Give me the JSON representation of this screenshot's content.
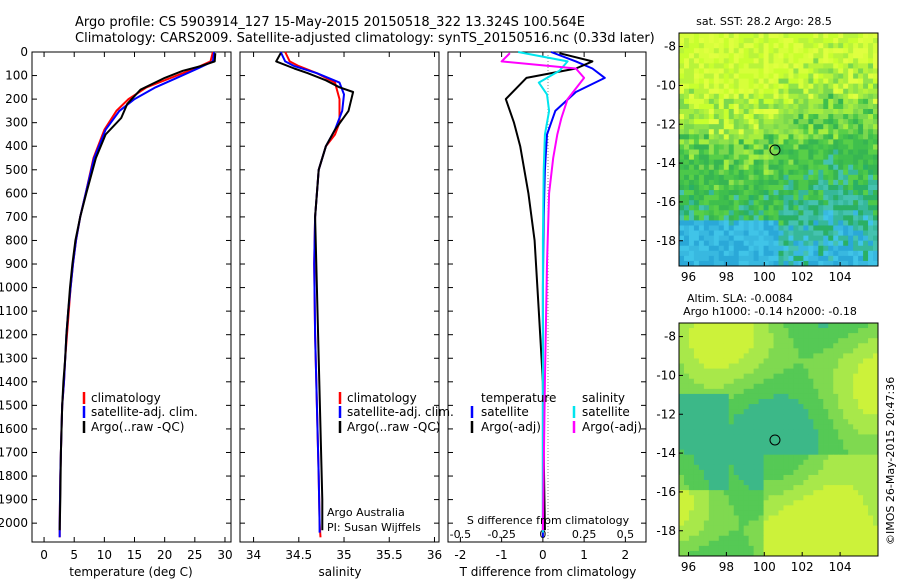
{
  "header": {
    "line1": "Argo profile: CS 5903914_127 15-May-2015 20150518_322 13.324S 100.564E",
    "line2": "Climatology: CARS2009. Satellite-adjusted climatology: synTS_20150516.nc (0.33d later)"
  },
  "colors": {
    "climatology": "#ff0000",
    "satellite": "#0000ff",
    "argo": "#000000",
    "sat_diff": "#00e5ee",
    "argo_diff": "#ff00ff"
  },
  "chart_data": [
    {
      "type": "line",
      "id": "temperature",
      "xlabel": "temperature (deg C)",
      "xlim": [
        -2,
        31
      ],
      "ylim": [
        2080,
        0
      ],
      "xticks": [
        "0",
        "5",
        "10",
        "15",
        "20",
        "25",
        "30"
      ],
      "xtick_values": [
        0,
        5,
        10,
        15,
        20,
        25,
        30
      ],
      "yticks": [
        "0",
        "100",
        "200",
        "300",
        "400",
        "500",
        "600",
        "700",
        "800",
        "900",
        "1000",
        "1100",
        "1200",
        "1300",
        "1400",
        "1500",
        "1600",
        "1700",
        "1800",
        "1900",
        "2000"
      ],
      "ytick_values": [
        0,
        100,
        200,
        300,
        400,
        500,
        600,
        700,
        800,
        900,
        1000,
        1100,
        1200,
        1300,
        1400,
        1500,
        1600,
        1700,
        1800,
        1900,
        2000
      ],
      "legend": [
        "climatology",
        "satellite-adj. clim.",
        "Argo(..raw -QC)"
      ],
      "series": [
        {
          "name": "climatology",
          "color": "#ff0000",
          "x": [
            28.0,
            27.6,
            25.0,
            21.0,
            17.0,
            14.0,
            12.0,
            10.0,
            8.2,
            6.9,
            6.0,
            5.3,
            4.8,
            4.4,
            4.1,
            3.8,
            3.5,
            3.3,
            3.0,
            2.9,
            2.7,
            2.6,
            2.6
          ],
          "depth": [
            0,
            40,
            70,
            110,
            150,
            200,
            250,
            330,
            450,
            600,
            700,
            800,
            900,
            1000,
            1100,
            1200,
            1300,
            1400,
            1500,
            1600,
            1800,
            2000,
            2060
          ]
        },
        {
          "name": "satellite-adj. clim.",
          "color": "#0000ff",
          "x": [
            28.2,
            28.0,
            25.5,
            22.0,
            18.5,
            15.0,
            12.5,
            10.2,
            8.3,
            6.9,
            6.0,
            5.3,
            4.8,
            4.4,
            4.0,
            3.7,
            3.5,
            3.3,
            3.0,
            2.9,
            2.7,
            2.6,
            2.6
          ],
          "depth": [
            0,
            40,
            70,
            110,
            150,
            200,
            250,
            330,
            450,
            600,
            700,
            800,
            900,
            1000,
            1100,
            1200,
            1300,
            1400,
            1500,
            1600,
            1800,
            2000,
            2060
          ]
        },
        {
          "name": "Argo(..raw -QC)",
          "color": "#000000",
          "x": [
            28.4,
            28.3,
            26.0,
            23.0,
            20.0,
            16.0,
            13.8,
            12.8,
            10.2,
            8.6,
            7.0,
            6.0,
            5.2,
            4.7,
            4.3,
            4.0,
            3.7,
            3.5,
            3.2,
            3.0,
            2.8,
            2.7,
            2.6
          ],
          "depth": [
            5,
            40,
            60,
            80,
            110,
            160,
            220,
            280,
            350,
            450,
            600,
            700,
            800,
            900,
            1000,
            1100,
            1200,
            1300,
            1400,
            1500,
            1700,
            1900,
            2030
          ]
        }
      ]
    },
    {
      "type": "line",
      "id": "salinity",
      "xlabel": "salinity",
      "xlim": [
        33.85,
        36.05
      ],
      "ylim": [
        2080,
        0
      ],
      "xticks": [
        "34",
        "34.5",
        "35",
        "35.5",
        "36"
      ],
      "xtick_values": [
        34,
        34.5,
        35,
        35.5,
        36
      ],
      "legend": [
        "climatology",
        "satellite-adj. clim.",
        "Argo(..raw -QC)"
      ],
      "annotation": [
        "Argo Australia",
        "PI: Susan Wijffels"
      ],
      "series": [
        {
          "name": "climatology",
          "color": "#ff0000",
          "x": [
            34.35,
            34.4,
            34.5,
            34.7,
            34.9,
            34.95,
            34.95,
            34.9,
            34.8,
            34.72,
            34.68,
            34.67,
            34.68,
            34.7,
            34.72,
            34.73,
            34.74
          ],
          "depth": [
            0,
            40,
            60,
            90,
            130,
            200,
            300,
            350,
            400,
            500,
            700,
            900,
            1200,
            1500,
            1800,
            2000,
            2060
          ]
        },
        {
          "name": "satellite-adj. clim.",
          "color": "#0000ff",
          "x": [
            34.3,
            34.35,
            34.45,
            34.7,
            34.95,
            35.0,
            34.98,
            34.9,
            34.8,
            34.72,
            34.68,
            34.67,
            34.68,
            34.7,
            34.72,
            34.73,
            34.73
          ],
          "depth": [
            0,
            40,
            60,
            90,
            130,
            180,
            250,
            330,
            400,
            500,
            700,
            900,
            1200,
            1500,
            1800,
            2000,
            2040
          ]
        },
        {
          "name": "Argo(..raw -QC)",
          "color": "#000000",
          "x": [
            34.3,
            34.25,
            34.45,
            34.6,
            34.8,
            34.95,
            35.1,
            35.05,
            34.9,
            34.8,
            34.72,
            34.68,
            34.7,
            34.72,
            34.74,
            34.76,
            34.76
          ],
          "depth": [
            5,
            40,
            70,
            90,
            120,
            150,
            170,
            250,
            330,
            400,
            500,
            700,
            1000,
            1300,
            1600,
            1900,
            2030
          ]
        }
      ]
    },
    {
      "type": "line",
      "id": "differences",
      "xlabel": "T difference from climatology",
      "top_label": "S difference from climatology",
      "xlim": [
        -2.3,
        2.5
      ],
      "ylim": [
        2080,
        0
      ],
      "xticks": [
        "-2",
        "-1",
        "0",
        "1",
        "2"
      ],
      "xtick_values": [
        -2,
        -1,
        0,
        1,
        2
      ],
      "sticks": [
        "-0.5",
        "-0.25",
        "0",
        "0.25",
        "0.5"
      ],
      "stick_values": [
        -0.5,
        -0.25,
        0,
        0.25,
        0.5
      ],
      "legend_titles": [
        "temperature",
        "salinity"
      ],
      "legend_left": [
        "satellite",
        "Argo(-adj)"
      ],
      "legend_right": [
        "satellite",
        "Argo(-adj)"
      ],
      "series": [
        {
          "name": "T satellite",
          "color": "#0000ff",
          "x": [
            0.2,
            0.8,
            1.2,
            1.5,
            0.8,
            0.3,
            0.1,
            0.05,
            0.02,
            0.0,
            0.0,
            0.0,
            0.0
          ],
          "depth": [
            0,
            40,
            70,
            110,
            170,
            250,
            350,
            500,
            700,
            1000,
            1400,
            1800,
            2060
          ]
        },
        {
          "name": "T Argo(-adj)",
          "color": "#000000",
          "x": [
            0.4,
            1.2,
            0.8,
            -0.4,
            -0.9,
            -0.7,
            -0.55,
            -0.35,
            -0.2,
            -0.1,
            0.0,
            0.02,
            0.05
          ],
          "depth": [
            5,
            40,
            70,
            110,
            200,
            300,
            400,
            600,
            800,
            1100,
            1400,
            1700,
            2030
          ]
        },
        {
          "name": "S satellite",
          "color": "#00e5ee",
          "x": [
            -0.6,
            0.6,
            0.4,
            -0.1,
            0.1,
            0.15,
            0.05,
            0.02,
            0.0,
            0.0,
            0.0
          ],
          "depth": [
            0,
            40,
            80,
            130,
            180,
            250,
            350,
            500,
            800,
            1300,
            2040
          ]
        },
        {
          "name": "S Argo(-adj)",
          "color": "#ff00ff",
          "x": [
            -0.8,
            -1.0,
            0.8,
            1.0,
            0.6,
            0.45,
            0.35,
            0.25,
            0.15,
            0.1,
            0.05,
            0.0
          ],
          "depth": [
            5,
            40,
            70,
            110,
            200,
            280,
            350,
            450,
            600,
            900,
            1400,
            2030
          ]
        }
      ]
    },
    {
      "type": "heatmap",
      "id": "sst_map",
      "title": "sat. SST: 28.2  Argo: 28.5",
      "xlim": [
        95.5,
        106
      ],
      "ylim": [
        -19.3,
        -7.3
      ],
      "xticks": [
        "96",
        "98",
        "100",
        "102",
        "104"
      ],
      "xtick_values": [
        96,
        98,
        100,
        102,
        104
      ],
      "yticks": [
        "-8",
        "-10",
        "-12",
        "-14",
        "-16",
        "-18"
      ],
      "ytick_values": [
        -8,
        -10,
        -12,
        -14,
        -16,
        -18
      ],
      "marker": {
        "lon": 100.564,
        "lat": -13.324
      }
    },
    {
      "type": "heatmap",
      "id": "sla_map",
      "title_line1": "Altim. SLA: -0.0084",
      "title_line2": "Argo h1000: -0.14 h2000: -0.18",
      "xlim": [
        95.5,
        106
      ],
      "ylim": [
        -19.3,
        -7.3
      ],
      "xticks": [
        "96",
        "98",
        "100",
        "102",
        "104"
      ],
      "xtick_values": [
        96,
        98,
        100,
        102,
        104
      ],
      "yticks": [
        "-8",
        "-10",
        "-12",
        "-14",
        "-16",
        "-18"
      ],
      "ytick_values": [
        -8,
        -10,
        -12,
        -14,
        -16,
        -18
      ],
      "marker": {
        "lon": 100.564,
        "lat": -13.324
      }
    }
  ],
  "footer": {
    "imos_label": "©IMOS 26-May-2015 20:47:36"
  }
}
